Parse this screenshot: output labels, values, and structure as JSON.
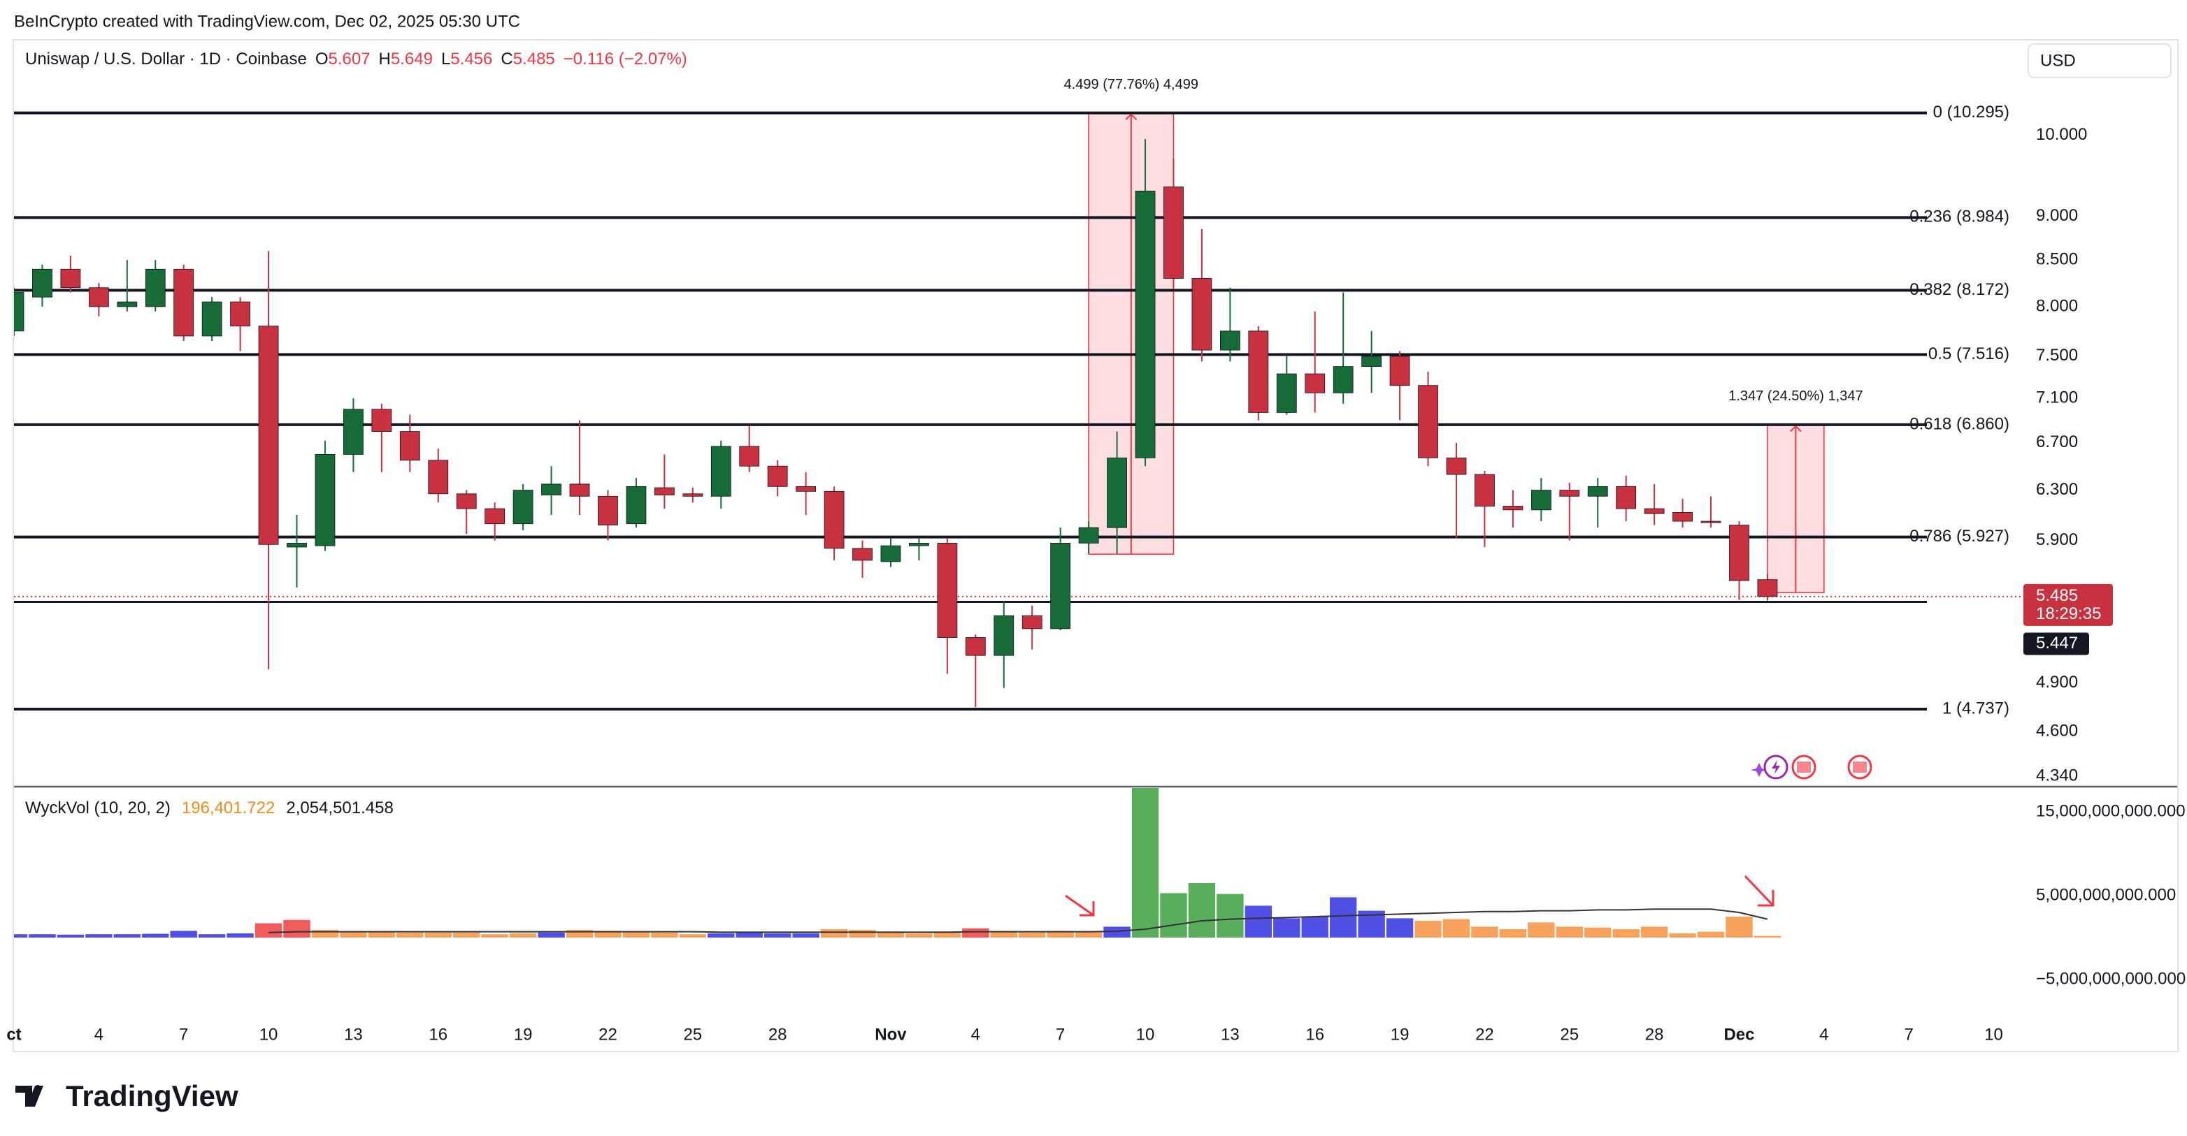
{
  "header": {
    "credit": "BeInCrypto created with TradingView.com, Dec 02, 2025 05:30 UTC",
    "symbol": "Uniswap / U.S. Dollar · 1D · Coinbase",
    "ohlc": [
      {
        "key": "O",
        "value": 5.607
      },
      {
        "key": "H",
        "value": 5.649
      },
      {
        "key": "L",
        "value": 5.456
      },
      {
        "key": "C",
        "value": 5.485
      }
    ],
    "change": "−0.116 (−2.07%)",
    "currency": "USD"
  },
  "chart_data": [
    {
      "type": "candlestick",
      "log_scale": true,
      "grid": false,
      "up_color": "#176b36",
      "down_color": "#c8313f",
      "x": [
        "2025-10-01",
        "2025-10-02",
        "2025-10-03",
        "2025-10-04",
        "2025-10-05",
        "2025-10-06",
        "2025-10-07",
        "2025-10-08",
        "2025-10-09",
        "2025-10-10",
        "2025-10-11",
        "2025-10-12",
        "2025-10-13",
        "2025-10-14",
        "2025-10-15",
        "2025-10-16",
        "2025-10-17",
        "2025-10-18",
        "2025-10-19",
        "2025-10-20",
        "2025-10-21",
        "2025-10-22",
        "2025-10-23",
        "2025-10-24",
        "2025-10-25",
        "2025-10-26",
        "2025-10-27",
        "2025-10-28",
        "2025-10-29",
        "2025-10-30",
        "2025-10-31",
        "2025-11-01",
        "2025-11-02",
        "2025-11-03",
        "2025-11-04",
        "2025-11-05",
        "2025-11-06",
        "2025-11-07",
        "2025-11-08",
        "2025-11-09",
        "2025-11-10",
        "2025-11-11",
        "2025-11-12",
        "2025-11-13",
        "2025-11-14",
        "2025-11-15",
        "2025-11-16",
        "2025-11-17",
        "2025-11-18",
        "2025-11-19",
        "2025-11-20",
        "2025-11-21",
        "2025-11-22",
        "2025-11-23",
        "2025-11-24",
        "2025-11-25",
        "2025-11-26",
        "2025-11-27",
        "2025-11-28",
        "2025-11-29",
        "2025-11-30",
        "2025-12-01",
        "2025-12-02"
      ],
      "open": [
        7.75,
        8.1,
        8.4,
        8.2,
        8.0,
        8.0,
        8.4,
        7.7,
        8.05,
        7.8,
        5.85,
        5.86,
        6.6,
        7.0,
        6.8,
        6.55,
        6.27,
        6.15,
        6.03,
        6.26,
        6.35,
        6.25,
        6.03,
        6.32,
        6.27,
        6.25,
        6.67,
        6.5,
        6.33,
        6.29,
        5.84,
        5.74,
        5.86,
        5.88,
        5.2,
        5.08,
        5.35,
        5.26,
        5.88,
        6.0,
        6.57,
        9.35,
        8.3,
        7.56,
        7.75,
        6.97,
        7.33,
        7.15,
        7.4,
        7.5,
        7.22,
        6.57,
        6.43,
        6.17,
        6.14,
        6.3,
        6.25,
        6.33,
        6.15,
        6.12,
        6.05,
        6.02,
        5.607
      ],
      "high": [
        8.2,
        8.45,
        8.55,
        8.25,
        8.5,
        8.5,
        8.45,
        8.1,
        8.1,
        8.6,
        6.1,
        6.72,
        7.1,
        7.05,
        6.95,
        6.65,
        6.3,
        6.2,
        6.35,
        6.5,
        6.9,
        6.3,
        6.4,
        6.6,
        6.32,
        6.72,
        6.85,
        6.55,
        6.45,
        6.33,
        5.9,
        5.92,
        5.92,
        5.92,
        5.22,
        5.45,
        5.42,
        6.0,
        6.05,
        6.8,
        9.95,
        9.7,
        8.85,
        8.2,
        7.8,
        7.5,
        7.95,
        8.15,
        7.75,
        7.55,
        7.35,
        6.7,
        6.46,
        6.3,
        6.4,
        6.36,
        6.4,
        6.42,
        6.35,
        6.23,
        6.25,
        6.05,
        5.649
      ],
      "low": [
        7.7,
        8.0,
        8.15,
        7.9,
        7.95,
        7.95,
        7.65,
        7.65,
        7.55,
        4.99,
        5.55,
        5.82,
        6.45,
        6.45,
        6.45,
        6.2,
        5.95,
        5.9,
        5.98,
        6.1,
        6.1,
        5.9,
        6.0,
        6.15,
        6.2,
        6.15,
        6.45,
        6.25,
        6.1,
        5.75,
        5.62,
        5.7,
        5.75,
        4.96,
        4.75,
        4.87,
        5.12,
        5.25,
        5.8,
        5.8,
        6.5,
        8.2,
        7.45,
        7.45,
        6.9,
        6.95,
        6.97,
        7.05,
        7.15,
        6.9,
        6.5,
        5.92,
        5.85,
        6.0,
        6.05,
        5.9,
        6.0,
        6.05,
        6.02,
        6.0,
        6.0,
        5.46,
        5.456
      ],
      "close": [
        8.15,
        8.4,
        8.2,
        8.0,
        8.05,
        8.4,
        7.7,
        8.05,
        7.8,
        5.87,
        5.88,
        6.6,
        7.0,
        6.8,
        6.55,
        6.27,
        6.15,
        6.03,
        6.3,
        6.35,
        6.25,
        6.02,
        6.33,
        6.26,
        6.25,
        6.67,
        6.5,
        6.33,
        6.29,
        5.84,
        5.75,
        5.86,
        5.88,
        5.2,
        5.08,
        5.35,
        5.26,
        5.88,
        6.0,
        6.57,
        9.3,
        8.3,
        7.56,
        7.75,
        6.97,
        7.33,
        7.15,
        7.4,
        7.5,
        7.22,
        6.57,
        6.43,
        6.17,
        6.14,
        6.3,
        6.25,
        6.33,
        6.15,
        6.11,
        6.05,
        6.04,
        5.6,
        5.485
      ],
      "xlim": [
        "2025-10-01",
        "2025-12-11"
      ],
      "xticks": [
        {
          "value": "2025-10-01",
          "label": "ct"
        },
        {
          "value": "2025-10-04",
          "label": "4"
        },
        {
          "value": "2025-10-07",
          "label": "7"
        },
        {
          "value": "2025-10-10",
          "label": "10"
        },
        {
          "value": "2025-10-13",
          "label": "13"
        },
        {
          "value": "2025-10-16",
          "label": "16"
        },
        {
          "value": "2025-10-19",
          "label": "19"
        },
        {
          "value": "2025-10-22",
          "label": "22"
        },
        {
          "value": "2025-10-25",
          "label": "25"
        },
        {
          "value": "2025-10-28",
          "label": "28"
        },
        {
          "value": "2025-11-01",
          "label": "Nov"
        },
        {
          "value": "2025-11-04",
          "label": "4"
        },
        {
          "value": "2025-11-07",
          "label": "7"
        },
        {
          "value": "2025-11-10",
          "label": "10"
        },
        {
          "value": "2025-11-13",
          "label": "13"
        },
        {
          "value": "2025-11-16",
          "label": "16"
        },
        {
          "value": "2025-11-19",
          "label": "19"
        },
        {
          "value": "2025-11-22",
          "label": "22"
        },
        {
          "value": "2025-11-25",
          "label": "25"
        },
        {
          "value": "2025-11-28",
          "label": "28"
        },
        {
          "value": "2025-12-01",
          "label": "Dec"
        },
        {
          "value": "2025-12-04",
          "label": "4"
        },
        {
          "value": "2025-12-07",
          "label": "7"
        },
        {
          "value": "2025-12-10",
          "label": "10"
        }
      ],
      "ylim": [
        4.29,
        10.79
      ],
      "yticks": [
        {
          "value": 10,
          "label": "10.000"
        },
        {
          "value": 9,
          "label": "9.000"
        },
        {
          "value": 8.5,
          "label": "8.500"
        },
        {
          "value": 8,
          "label": "8.000"
        },
        {
          "value": 7.5,
          "label": "7.500"
        },
        {
          "value": 7.1,
          "label": "7.100"
        },
        {
          "value": 6.7,
          "label": "6.700"
        },
        {
          "value": 6.3,
          "label": "6.300"
        },
        {
          "value": 5.9,
          "label": "5.900"
        },
        {
          "value": 4.9,
          "label": "4.900"
        },
        {
          "value": 4.6,
          "label": "4.600"
        },
        {
          "value": 4.34,
          "label": "4.340"
        }
      ],
      "fib_levels": [
        {
          "value": 10.295,
          "label": "0 (10.295)"
        },
        {
          "value": 8.984,
          "label": "0.236 (8.984)"
        },
        {
          "value": 8.172,
          "label": "0.382 (8.172)"
        },
        {
          "value": 7.516,
          "label": "0.5 (7.516)"
        },
        {
          "value": 6.86,
          "label": "0.618 (6.860)"
        },
        {
          "value": 5.927,
          "label": "0.786 (5.927)"
        },
        {
          "value": 4.737,
          "label": "1 (4.737)"
        }
      ],
      "range_boxes": [
        {
          "label": "4.499 (77.76%) 4,499",
          "from": 5.796,
          "to": 10.295,
          "x0": "2025-11-08",
          "x1": "2025-11-11"
        },
        {
          "label": "1.347 (24.50%) 1,347",
          "from": 5.513,
          "to": 6.86,
          "x0": "2025-12-02",
          "x1": "2025-12-04"
        }
      ],
      "last_price": {
        "value": 5.485,
        "countdown": "18:29:35"
      },
      "price_line": {
        "value": 5.447
      }
    },
    {
      "type": "bar",
      "title": "WyckVol (10, 20, 2)",
      "readouts": [
        "196,401.722",
        "2,054,501.458"
      ],
      "readout_colors": [
        "#f08c1a",
        "#131722"
      ],
      "x": [
        "2025-10-01",
        "2025-10-02",
        "2025-10-03",
        "2025-10-04",
        "2025-10-05",
        "2025-10-06",
        "2025-10-07",
        "2025-10-08",
        "2025-10-09",
        "2025-10-10",
        "2025-10-11",
        "2025-10-12",
        "2025-10-13",
        "2025-10-14",
        "2025-10-15",
        "2025-10-16",
        "2025-10-17",
        "2025-10-18",
        "2025-10-19",
        "2025-10-20",
        "2025-10-21",
        "2025-10-22",
        "2025-10-23",
        "2025-10-24",
        "2025-10-25",
        "2025-10-26",
        "2025-10-27",
        "2025-10-28",
        "2025-10-29",
        "2025-10-30",
        "2025-10-31",
        "2025-11-01",
        "2025-11-02",
        "2025-11-03",
        "2025-11-04",
        "2025-11-05",
        "2025-11-06",
        "2025-11-07",
        "2025-11-08",
        "2025-11-09",
        "2025-11-10",
        "2025-11-11",
        "2025-11-12",
        "2025-11-13",
        "2025-11-14",
        "2025-11-15",
        "2025-11-16",
        "2025-11-17",
        "2025-11-18",
        "2025-11-19",
        "2025-11-20",
        "2025-11-21",
        "2025-11-22",
        "2025-11-23",
        "2025-11-24",
        "2025-11-25",
        "2025-11-26",
        "2025-11-27",
        "2025-11-28",
        "2025-11-29",
        "2025-11-30",
        "2025-12-01",
        "2025-12-02"
      ],
      "values": [
        400000000.0,
        400000000.0,
        350000000.0,
        400000000.0,
        400000000.0,
        450000000.0,
        800000000.0,
        400000000.0,
        500000000.0,
        1700000000.0,
        2100000000.0,
        900000000.0,
        700000000.0,
        700000000.0,
        600000000.0,
        600000000.0,
        600000000.0,
        400000000.0,
        500000000.0,
        600000000.0,
        900000000.0,
        800000000.0,
        700000000.0,
        600000000.0,
        400000000.0,
        500000000.0,
        600000000.0,
        500000000.0,
        500000000.0,
        1000000000.0,
        900000000.0,
        600000000.0,
        500000000.0,
        700000000.0,
        1100000000.0,
        800000000.0,
        600000000.0,
        800000000.0,
        700000000.0,
        1300000000.0,
        18000000000.0,
        5300000000.0,
        6500000000.0,
        5200000000.0,
        3800000000.0,
        2300000000.0,
        2500000000.0,
        4800000000.0,
        3200000000.0,
        2300000000.0,
        2000000000.0,
        2200000000.0,
        1300000000.0,
        1000000000.0,
        1800000000.0,
        1300000000.0,
        1200000000.0,
        1000000000.0,
        1300000000.0,
        500000000.0,
        700000000.0,
        2500000000.0,
        200000000.0
      ],
      "colors": [
        "#5050e6",
        "#5050e6",
        "#5050e6",
        "#5050e6",
        "#5050e6",
        "#5050e6",
        "#5050e6",
        "#5050e6",
        "#5050e6",
        "#f05b5b",
        "#f05b5b",
        "#f7a25d",
        "#f7a25d",
        "#f7a25d",
        "#f7a25d",
        "#f7a25d",
        "#f7a25d",
        "#f7a25d",
        "#f7a25d",
        "#5050e6",
        "#f7a25d",
        "#f7a25d",
        "#f7a25d",
        "#f7a25d",
        "#f7a25d",
        "#5050e6",
        "#5050e6",
        "#5050e6",
        "#5050e6",
        "#f7a25d",
        "#f7a25d",
        "#f7a25d",
        "#f7a25d",
        "#f7a25d",
        "#f05b5b",
        "#f7a25d",
        "#f7a25d",
        "#f7a25d",
        "#f7a25d",
        "#5050e6",
        "#5aad5a",
        "#5aad5a",
        "#5aad5a",
        "#5aad5a",
        "#5050e6",
        "#5050e6",
        "#5050e6",
        "#5050e6",
        "#5050e6",
        "#5050e6",
        "#f7a25d",
        "#f7a25d",
        "#f7a25d",
        "#f7a25d",
        "#f7a25d",
        "#f7a25d",
        "#f7a25d",
        "#f7a25d",
        "#f7a25d",
        "#f7a25d",
        "#f7a25d",
        "#f7a25d",
        "#f7a25d"
      ],
      "ma_values": [
        null,
        null,
        null,
        null,
        null,
        null,
        null,
        null,
        null,
        600000000.0,
        700000000.0,
        700000000.0,
        700000000.0,
        700000000.0,
        700000000.0,
        700000000.0,
        700000000.0,
        700000000.0,
        700000000.0,
        700000000.0,
        700000000.0,
        700000000.0,
        700000000.0,
        700000000.0,
        700000000.0,
        650000000.0,
        650000000.0,
        650000000.0,
        650000000.0,
        650000000.0,
        650000000.0,
        650000000.0,
        650000000.0,
        650000000.0,
        700000000.0,
        700000000.0,
        700000000.0,
        700000000.0,
        700000000.0,
        750000000.0,
        1000000000.0,
        1500000000.0,
        2000000000.0,
        2200000000.0,
        2300000000.0,
        2400000000.0,
        2500000000.0,
        2600000000.0,
        2700000000.0,
        2800000000.0,
        2900000000.0,
        3000000000.0,
        3100000000.0,
        3100000000.0,
        3200000000.0,
        3200000000.0,
        3300000000.0,
        3300000000.0,
        3400000000.0,
        3400000000.0,
        3400000000.0,
        3000000000.0,
        2200000000.0
      ],
      "ma_color": "#333333",
      "xlim": [
        "2025-10-01",
        "2025-12-11"
      ],
      "ylim": [
        -8170000000,
        18000000000
      ],
      "yticks": [
        {
          "value": 15000000000,
          "label": "15,000,000,000.000"
        },
        {
          "value": 5000000000,
          "label": "5,000,000,000.000"
        },
        {
          "value": -5000000000,
          "label": "−5,000,000,000.000"
        }
      ]
    }
  ],
  "footer": {
    "brand": "TradingView"
  }
}
